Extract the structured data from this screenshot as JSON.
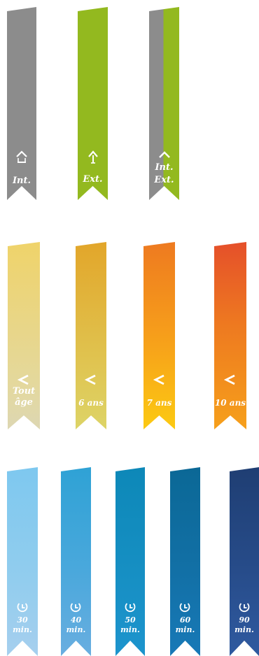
{
  "location_ribbons": [
    {
      "label": "Int.",
      "colors": [
        "#8c8c8c",
        "#8c8c8c"
      ],
      "icon": "house-icon"
    },
    {
      "label": "Ext.",
      "colors": [
        "#93b91f",
        "#93b91f"
      ],
      "icon": "tree-icon"
    },
    {
      "label_line1": "Int.",
      "label_line2": "Ext.",
      "colors": [
        "#8c8c8c",
        "#93b91f"
      ],
      "icon": "house-icon"
    }
  ],
  "age_ribbons": [
    {
      "label_line1": "Tout",
      "label_line2": "âge",
      "colors": [
        "#efd36a",
        "#e2dca6"
      ],
      "icon": "less-than-icon"
    },
    {
      "label": "6 ans",
      "colors": [
        "#e2a62a",
        "#e1cf5a"
      ],
      "icon": "less-than-icon"
    },
    {
      "label": "7 ans",
      "colors": [
        "#ee7a20",
        "#fbc314"
      ],
      "icon": "less-than-icon"
    },
    {
      "label": "10 ans",
      "colors": [
        "#e5502a",
        "#f7a21a"
      ],
      "icon": "less-than-icon"
    }
  ],
  "duration_ribbons": [
    {
      "line1": "30",
      "line2": "min.",
      "colors": [
        "#7ec8ef",
        "#a6cfee"
      ],
      "icon": "clock-icon"
    },
    {
      "line1": "40",
      "line2": "min.",
      "colors": [
        "#2fa2d5",
        "#69aee0"
      ],
      "icon": "clock-icon"
    },
    {
      "line1": "50",
      "line2": "min.",
      "colors": [
        "#0d88b8",
        "#1d94cd"
      ],
      "icon": "clock-icon"
    },
    {
      "line1": "60",
      "line2": "min.",
      "colors": [
        "#0b6896",
        "#1879b7"
      ],
      "icon": "clock-icon"
    },
    {
      "line1": "90",
      "line2": "min.",
      "colors": [
        "#1f3e73",
        "#2f5aa0"
      ],
      "icon": "clock-icon"
    }
  ]
}
